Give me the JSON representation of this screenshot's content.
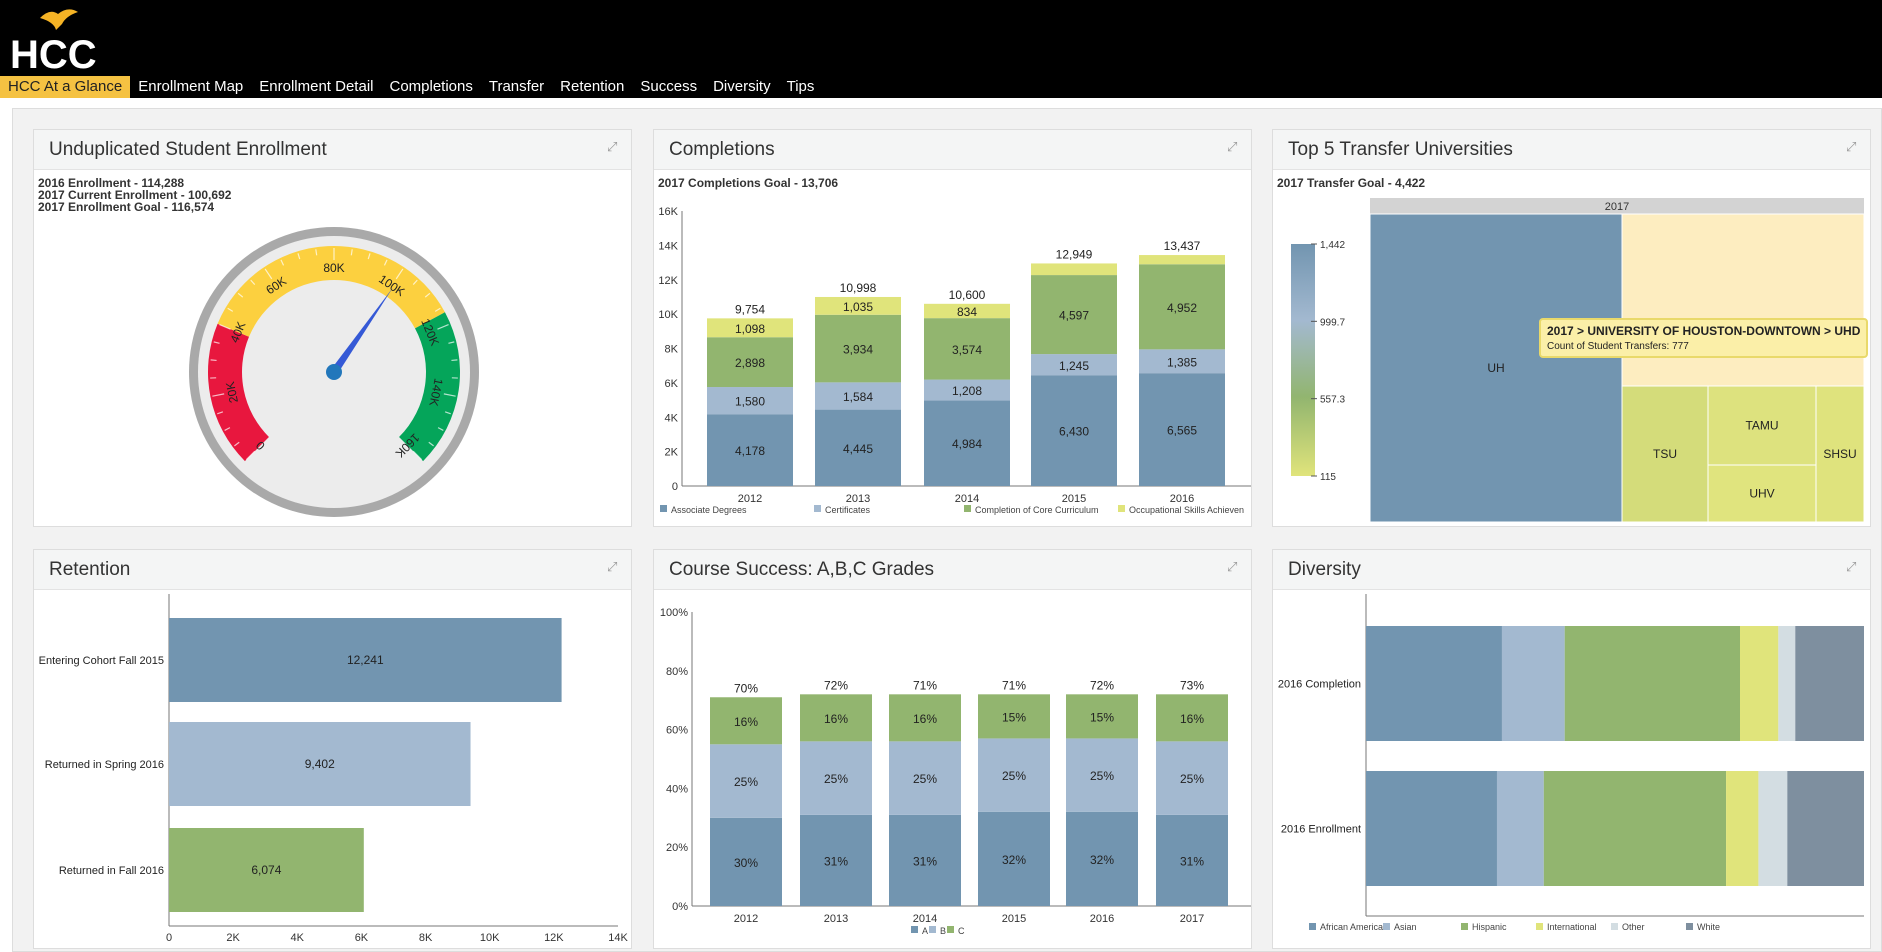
{
  "header": {
    "logo_text": "HCC",
    "nav": [
      {
        "label": "HCC At a Glance",
        "active": true
      },
      {
        "label": "Enrollment Map"
      },
      {
        "label": "Enrollment Detail"
      },
      {
        "label": "Completions"
      },
      {
        "label": "Transfer"
      },
      {
        "label": "Retention"
      },
      {
        "label": "Success"
      },
      {
        "label": "Diversity"
      },
      {
        "label": "Tips"
      }
    ]
  },
  "colors": {
    "accent": "#f5c242",
    "header_bg": "#000000",
    "blue": "#7295b0",
    "lightblue": "#a3b9d0",
    "green": "#92b56f",
    "yellow": "#e0e47b",
    "lightgray": "#d3dde2",
    "slate": "#7e8f9f"
  },
  "panels": {
    "enrollment": {
      "title": "Unduplicated Student Enrollment",
      "lines": [
        "2016 Enrollment - 114,288",
        "2017 Current Enrollment - 100,692",
        "2017 Enrollment Goal - 116,574"
      ]
    },
    "completions": {
      "title": "Completions",
      "subtitle": "2017 Completions Goal - 13,706"
    },
    "transfer": {
      "title": "Top 5 Transfer Universities",
      "subtitle": "2017 Transfer Goal - 4,422"
    },
    "retention": {
      "title": "Retention"
    },
    "success": {
      "title": "Course Success: A,B,C Grades"
    },
    "diversity": {
      "title": "Diversity"
    }
  },
  "chart_data": [
    {
      "id": "gauge",
      "type": "gauge",
      "min": 0,
      "max": 160000,
      "value": 100692,
      "ticks": [
        "0",
        "20K",
        "40K",
        "60K",
        "80K",
        "100K",
        "120K",
        "140K",
        "160K"
      ],
      "bands": [
        {
          "from": 0,
          "to": 40000,
          "color": "#e8173e"
        },
        {
          "from": 40000,
          "to": 116574,
          "color": "#fcd03f"
        },
        {
          "from": 116574,
          "to": 160000,
          "color": "#05a55a"
        }
      ]
    },
    {
      "id": "completions",
      "type": "bar",
      "stacked": true,
      "categories": [
        "2012",
        "2013",
        "2014",
        "2015",
        "2016"
      ],
      "ylim": [
        0,
        16000
      ],
      "yticks": [
        "0",
        "2K",
        "4K",
        "6K",
        "8K",
        "10K",
        "12K",
        "14K",
        "16K"
      ],
      "totals": [
        "9,754",
        "10,998",
        "10,600",
        "12,949",
        "13,437"
      ],
      "legend": "bottom",
      "series": [
        {
          "name": "Associate Degrees",
          "color": "#7295b0",
          "values": [
            4178,
            4445,
            4984,
            6430,
            6565
          ],
          "labels": [
            "4,178",
            "4,445",
            "4,984",
            "6,430",
            "6,565"
          ]
        },
        {
          "name": "Certificates",
          "color": "#a3b9d0",
          "values": [
            1580,
            1584,
            1208,
            1245,
            1385
          ],
          "labels": [
            "1,580",
            "1,584",
            "1,208",
            "1,245",
            "1,385"
          ]
        },
        {
          "name": "Completion of Core Curriculum",
          "color": "#92b56f",
          "values": [
            2898,
            3934,
            3574,
            4597,
            4952
          ],
          "labels": [
            "2,898",
            "3,934",
            "3,574",
            "4,597",
            "4,952"
          ]
        },
        {
          "name": "Occupational Skills Achieven",
          "color": "#e0e47b",
          "values": [
            1098,
            1035,
            834,
            677,
            535
          ],
          "labels": [
            "1,098",
            "1,035",
            "834",
            "",
            ""
          ]
        }
      ]
    },
    {
      "id": "transfer",
      "type": "treemap",
      "header": "2017",
      "scale": {
        "min": 115,
        "max": 1442,
        "ticks": [
          "1,442",
          "999.7",
          "557.3",
          "115"
        ]
      },
      "items": [
        {
          "label": "UH",
          "value": 1442,
          "color": "#7295b0"
        },
        {
          "label": "UHD",
          "value": 777,
          "color": "#fdedc0"
        },
        {
          "label": "TSU",
          "value": 220,
          "color": "#d4dc7a"
        },
        {
          "label": "TAMU",
          "value": 160,
          "color": "#dde27e"
        },
        {
          "label": "UHV",
          "value": 115,
          "color": "#e0e47e"
        },
        {
          "label": "SHSU",
          "value": 118,
          "color": "#dfe37d"
        }
      ],
      "tooltip": {
        "title": "2017 > UNIVERSITY OF HOUSTON-DOWNTOWN > UHD",
        "body": "Count of Student Transfers: 777"
      }
    },
    {
      "id": "retention",
      "type": "bar",
      "orientation": "horizontal",
      "categories": [
        "Entering Cohort Fall 2015",
        "Returned in Spring 2016",
        "Returned in Fall 2016"
      ],
      "values": [
        12241,
        9402,
        6074
      ],
      "labels": [
        "12,241",
        "9,402",
        "6,074"
      ],
      "colors": [
        "#7295b0",
        "#a3b9d0",
        "#92b56f"
      ],
      "xlim": [
        0,
        14000
      ],
      "xticks": [
        "0",
        "2K",
        "4K",
        "6K",
        "8K",
        "10K",
        "12K",
        "14K"
      ]
    },
    {
      "id": "success",
      "type": "bar",
      "stacked": true,
      "categories": [
        "2012",
        "2013",
        "2014",
        "2015",
        "2016",
        "2017"
      ],
      "ylim": [
        0,
        100
      ],
      "yticks": [
        "0%",
        "20%",
        "40%",
        "60%",
        "80%",
        "100%"
      ],
      "totals": [
        "70%",
        "72%",
        "71%",
        "71%",
        "72%",
        "73%"
      ],
      "legend": "bottom",
      "series": [
        {
          "name": "A",
          "color": "#7295b0",
          "values": [
            30,
            31,
            31,
            32,
            32,
            31
          ],
          "labels": [
            "30%",
            "31%",
            "31%",
            "32%",
            "32%",
            "31%"
          ]
        },
        {
          "name": "B",
          "color": "#a3b9d0",
          "values": [
            25,
            25,
            25,
            25,
            25,
            25
          ],
          "labels": [
            "25%",
            "25%",
            "25%",
            "25%",
            "25%",
            "25%"
          ]
        },
        {
          "name": "C",
          "color": "#92b56f",
          "values": [
            16,
            16,
            16,
            15,
            15,
            16
          ],
          "labels": [
            "16%",
            "16%",
            "16%",
            "15%",
            "15%",
            "16%"
          ]
        }
      ]
    },
    {
      "id": "diversity",
      "type": "bar",
      "orientation": "horizontal",
      "stacked": true,
      "percent": true,
      "categories": [
        "2016 Completion",
        "2016 Enrollment"
      ],
      "legend": "bottom",
      "series": [
        {
          "name": "African American",
          "color": "#7295b0",
          "values": [
            27.3,
            26.3
          ]
        },
        {
          "name": "Asian",
          "color": "#a3b9d0",
          "values": [
            12.6,
            9.4
          ]
        },
        {
          "name": "Hispanic",
          "color": "#92b56f",
          "values": [
            35.2,
            36.6
          ]
        },
        {
          "name": "International",
          "color": "#e0e47b",
          "values": [
            7.7,
            6.5
          ]
        },
        {
          "name": "Other",
          "color": "#d3dde2",
          "values": [
            3.4,
            5.8
          ]
        },
        {
          "name": "White",
          "color": "#7e8f9f",
          "values": [
            13.8,
            15.4
          ]
        }
      ]
    }
  ]
}
